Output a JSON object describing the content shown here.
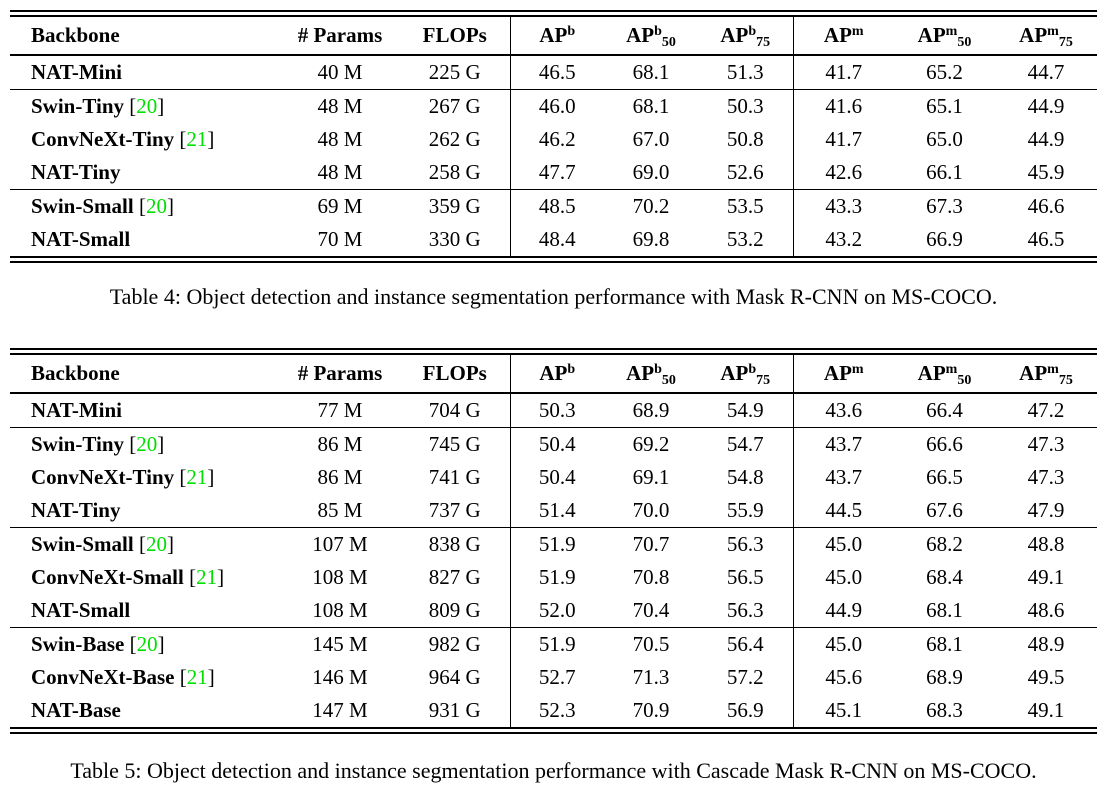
{
  "page": {
    "background": "#ffffff",
    "text_color": "#000000",
    "citation_color": "#00e000",
    "rule_color": "#000000"
  },
  "tables": [
    {
      "name": "mask-rcnn-results",
      "caption": "Table 4: Object detection and instance segmentation performance with Mask R-CNN on MS-COCO.",
      "columns": [
        {
          "label": "Backbone"
        },
        {
          "label": "# Params"
        },
        {
          "label": "FLOPs"
        },
        {
          "label": "AP",
          "sup": "b"
        },
        {
          "label": "AP",
          "sup": "b",
          "sub": "50"
        },
        {
          "label": "AP",
          "sup": "b",
          "sub": "75"
        },
        {
          "label": "AP",
          "sup": "m"
        },
        {
          "label": "AP",
          "sup": "m",
          "sub": "50"
        },
        {
          "label": "AP",
          "sup": "m",
          "sub": "75"
        }
      ],
      "groups": [
        [
          {
            "backbone": "NAT-Mini",
            "citation": "",
            "values": [
              "40 M",
              "225 G",
              "46.5",
              "68.1",
              "51.3",
              "41.7",
              "65.2",
              "44.7"
            ]
          }
        ],
        [
          {
            "backbone": "Swin-Tiny",
            "citation": "20",
            "values": [
              "48 M",
              "267 G",
              "46.0",
              "68.1",
              "50.3",
              "41.6",
              "65.1",
              "44.9"
            ]
          },
          {
            "backbone": "ConvNeXt-Tiny",
            "citation": "21",
            "values": [
              "48 M",
              "262 G",
              "46.2",
              "67.0",
              "50.8",
              "41.7",
              "65.0",
              "44.9"
            ]
          },
          {
            "backbone": "NAT-Tiny",
            "citation": "",
            "values": [
              "48 M",
              "258 G",
              "47.7",
              "69.0",
              "52.6",
              "42.6",
              "66.1",
              "45.9"
            ]
          }
        ],
        [
          {
            "backbone": "Swin-Small",
            "citation": "20",
            "values": [
              "69 M",
              "359 G",
              "48.5",
              "70.2",
              "53.5",
              "43.3",
              "67.3",
              "46.6"
            ]
          },
          {
            "backbone": "NAT-Small",
            "citation": "",
            "values": [
              "70 M",
              "330 G",
              "48.4",
              "69.8",
              "53.2",
              "43.2",
              "66.9",
              "46.5"
            ]
          }
        ]
      ]
    },
    {
      "name": "cascade-mask-rcnn-results",
      "caption": "Table 5: Object detection and instance segmentation performance with Cascade Mask R-CNN on MS-COCO.",
      "columns": [
        {
          "label": "Backbone"
        },
        {
          "label": "# Params"
        },
        {
          "label": "FLOPs"
        },
        {
          "label": "AP",
          "sup": "b"
        },
        {
          "label": "AP",
          "sup": "b",
          "sub": "50"
        },
        {
          "label": "AP",
          "sup": "b",
          "sub": "75"
        },
        {
          "label": "AP",
          "sup": "m"
        },
        {
          "label": "AP",
          "sup": "m",
          "sub": "50"
        },
        {
          "label": "AP",
          "sup": "m",
          "sub": "75"
        }
      ],
      "groups": [
        [
          {
            "backbone": "NAT-Mini",
            "citation": "",
            "values": [
              "77 M",
              "704 G",
              "50.3",
              "68.9",
              "54.9",
              "43.6",
              "66.4",
              "47.2"
            ]
          }
        ],
        [
          {
            "backbone": "Swin-Tiny",
            "citation": "20",
            "values": [
              "86 M",
              "745 G",
              "50.4",
              "69.2",
              "54.7",
              "43.7",
              "66.6",
              "47.3"
            ]
          },
          {
            "backbone": "ConvNeXt-Tiny",
            "citation": "21",
            "values": [
              "86 M",
              "741 G",
              "50.4",
              "69.1",
              "54.8",
              "43.7",
              "66.5",
              "47.3"
            ]
          },
          {
            "backbone": "NAT-Tiny",
            "citation": "",
            "values": [
              "85 M",
              "737 G",
              "51.4",
              "70.0",
              "55.9",
              "44.5",
              "67.6",
              "47.9"
            ]
          }
        ],
        [
          {
            "backbone": "Swin-Small",
            "citation": "20",
            "values": [
              "107 M",
              "838 G",
              "51.9",
              "70.7",
              "56.3",
              "45.0",
              "68.2",
              "48.8"
            ]
          },
          {
            "backbone": "ConvNeXt-Small",
            "citation": "21",
            "values": [
              "108 M",
              "827 G",
              "51.9",
              "70.8",
              "56.5",
              "45.0",
              "68.4",
              "49.1"
            ]
          },
          {
            "backbone": "NAT-Small",
            "citation": "",
            "values": [
              "108 M",
              "809 G",
              "52.0",
              "70.4",
              "56.3",
              "44.9",
              "68.1",
              "48.6"
            ]
          }
        ],
        [
          {
            "backbone": "Swin-Base",
            "citation": "20",
            "values": [
              "145 M",
              "982 G",
              "51.9",
              "70.5",
              "56.4",
              "45.0",
              "68.1",
              "48.9"
            ]
          },
          {
            "backbone": "ConvNeXt-Base",
            "citation": "21",
            "values": [
              "146 M",
              "964 G",
              "52.7",
              "71.3",
              "57.2",
              "45.6",
              "68.9",
              "49.5"
            ]
          },
          {
            "backbone": "NAT-Base",
            "citation": "",
            "values": [
              "147 M",
              "931 G",
              "52.3",
              "70.9",
              "56.9",
              "45.1",
              "68.3",
              "49.1"
            ]
          }
        ]
      ]
    }
  ]
}
